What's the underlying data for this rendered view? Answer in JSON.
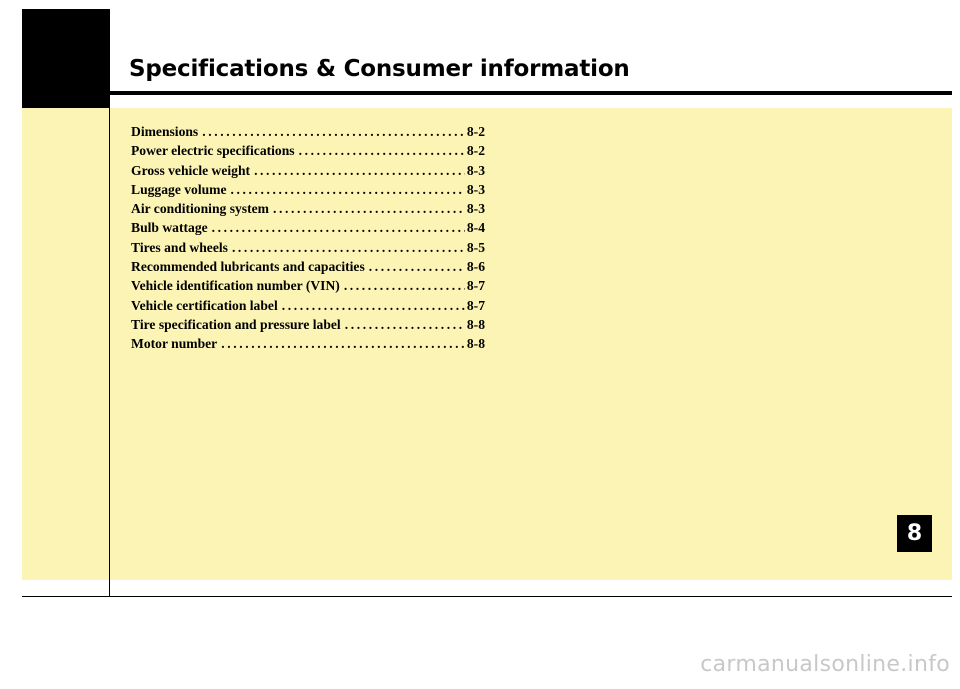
{
  "header": {
    "title": "Specifications & Consumer information"
  },
  "toc": {
    "entries": [
      {
        "label": "Dimensions",
        "page": "8-2"
      },
      {
        "label": "Power electric specifications",
        "page": "8-2"
      },
      {
        "label": "Gross vehicle weight",
        "page": "8-3"
      },
      {
        "label": "Luggage volume",
        "page": "8-3"
      },
      {
        "label": "Air conditioning system",
        "page": "8-3"
      },
      {
        "label": "Bulb wattage",
        "page": "8-4"
      },
      {
        "label": "Tires and wheels",
        "page": "8-5"
      },
      {
        "label": "Recommended lubricants and capacities",
        "page": "8-6"
      },
      {
        "label": "Vehicle identification number (VIN)",
        "page": "8-7"
      },
      {
        "label": "Vehicle certification label",
        "page": "8-7"
      },
      {
        "label": "Tire specification and pressure label",
        "page": "8-8"
      },
      {
        "label": "Motor number",
        "page": "8-8"
      }
    ]
  },
  "chapter_tab": {
    "number": "8"
  },
  "watermark": {
    "text": "carmanualsonline.info"
  },
  "colors": {
    "panel": "#fcf4b4",
    "ink": "#000000",
    "watermark": "#c8c8c8"
  }
}
